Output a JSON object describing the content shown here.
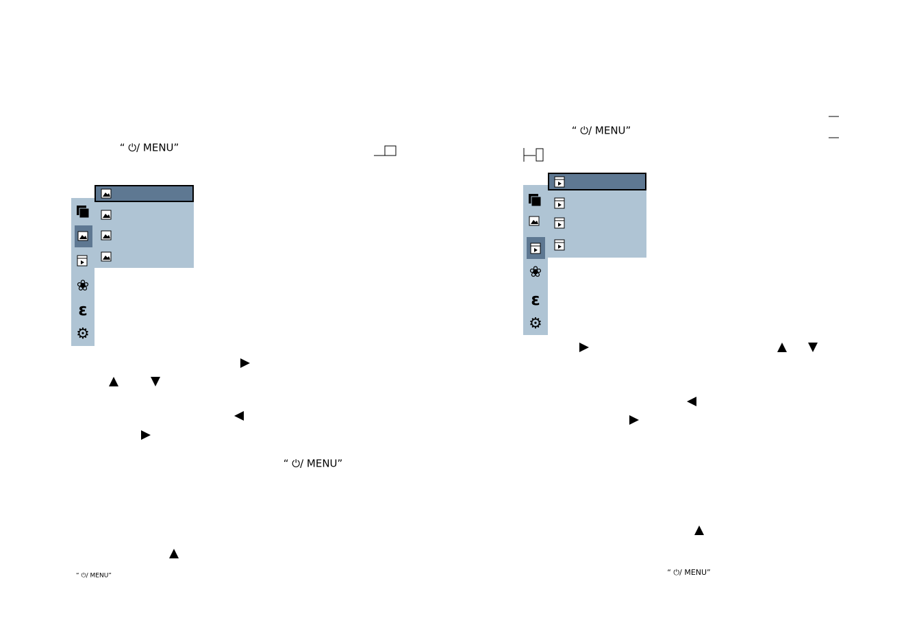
{
  "left": {
    "menu_labels": [
      "“ ⏻/ MENU”",
      "“ ⏻/ MENU”",
      "“ ⏻/ MENU”"
    ]
  },
  "right": {
    "menu_labels": [
      "“ ⏻/ MENU”",
      "“ ⏻/ MENU”"
    ]
  }
}
